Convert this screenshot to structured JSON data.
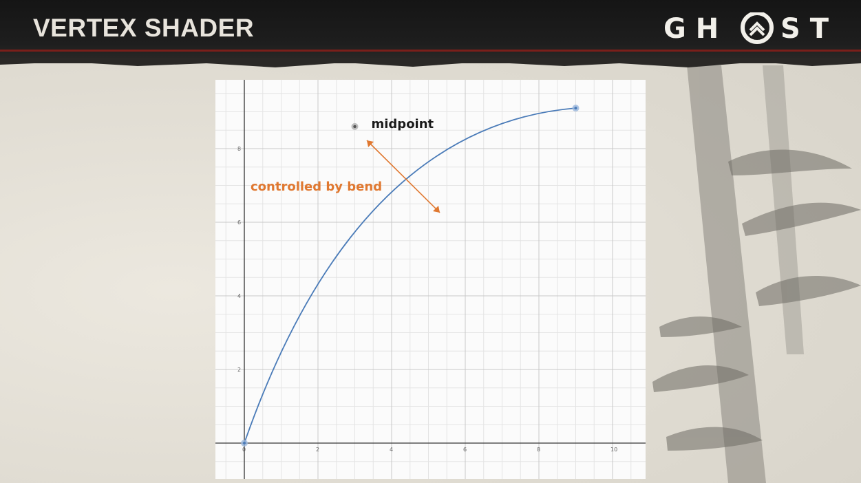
{
  "slide": {
    "title": "VERTEX SHADER",
    "logo_text_left": "G H",
    "logo_text_right": "S T",
    "logo_icon": "ghost-emblem-icon"
  },
  "colors": {
    "header_bg": "#1a1a1a",
    "accent_rust": "#7a1f1a",
    "curve": "#4a7bb8",
    "arrow": "#e07830",
    "midpoint_dot": "#555555"
  },
  "chart_data": {
    "type": "line",
    "title": "",
    "xlabel": "",
    "ylabel": "",
    "xlim": [
      -0.8,
      11
    ],
    "ylim": [
      -0.5,
      10
    ],
    "x_ticks": [
      0,
      2,
      4,
      6,
      8,
      10
    ],
    "y_ticks": [
      2,
      4,
      6,
      8
    ],
    "x_tick_labels": [
      "0",
      "2",
      "4",
      "6",
      "8",
      "10"
    ],
    "y_tick_labels": [
      "2",
      "4",
      "6",
      "8"
    ],
    "grid": true,
    "series": [
      {
        "type": "quadratic-bezier",
        "start": [
          0,
          0
        ],
        "control": [
          3,
          8.6
        ],
        "end": [
          9,
          9.1
        ]
      }
    ],
    "points": [
      {
        "x": 0,
        "y": 0
      },
      {
        "x": 9,
        "y": 9.1
      },
      {
        "x": 3,
        "y": 8.6
      }
    ],
    "annotations": {
      "midpoint": "midpoint",
      "bend": "controlled by bend"
    }
  }
}
